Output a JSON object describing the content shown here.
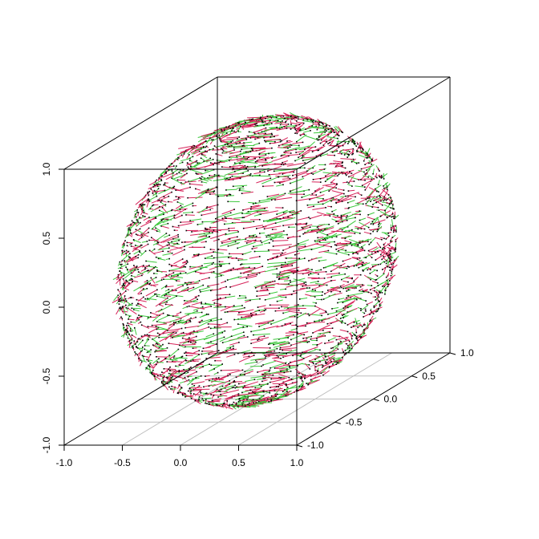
{
  "chart_data": {
    "type": "scatter",
    "subtype": "3d-vector-field",
    "title": "",
    "xlabel": "",
    "ylabel": "",
    "zlabel": "",
    "xlim": [
      -1.0,
      1.0
    ],
    "ylim": [
      -1.0,
      1.0
    ],
    "zlim": [
      -1.0,
      1.0
    ],
    "x_ticks": [
      "-1.0",
      "-0.5",
      "0.0",
      "0.5",
      "1.0"
    ],
    "y_ticks": [
      "-1.0",
      "-0.5",
      "0.0",
      "0.5",
      "1.0"
    ],
    "z_ticks": [
      "-1.0",
      "-0.5",
      "0.0",
      "0.5",
      "1.0"
    ],
    "grid": "bottom plane",
    "box": "full",
    "point_color": "#000000",
    "arrow_colors": [
      "#d6245a",
      "#3cc83c"
    ],
    "description_of_points": "approximately 2500 points on a unit sphere, each with a short displacement segment",
    "point_count": 2500,
    "segment_length": 0.08
  }
}
